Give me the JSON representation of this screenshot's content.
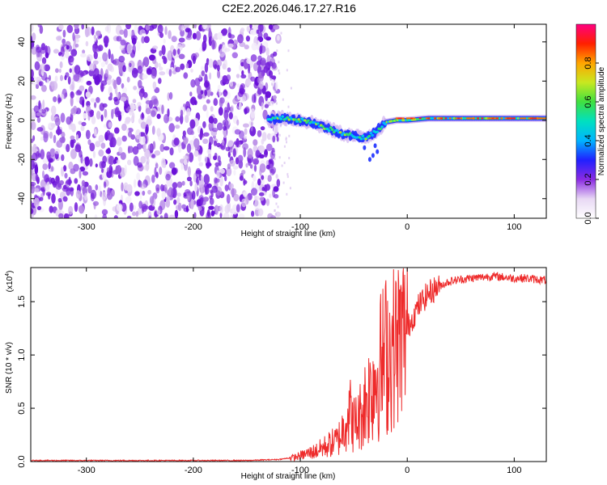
{
  "title": "C2E2.2026.046.17.27.R16",
  "chart_data": [
    {
      "type": "heatmap",
      "xlabel": "Height of straight line (km)",
      "ylabel": "Frequency (Hz)",
      "xlim": [
        -352,
        130
      ],
      "ylim": [
        -50,
        49
      ],
      "xticks": [
        -300,
        -200,
        -100,
        0,
        100
      ],
      "yticks": [
        -40,
        -20,
        0,
        20,
        40
      ],
      "colorbar": {
        "label": "Normalized spectral amplitude",
        "range": [
          0,
          1
        ],
        "ticks": [
          "0.0",
          "0.2",
          "0.4",
          "0.6",
          "0.8"
        ],
        "tick_values": [
          0,
          0.2,
          0.4,
          0.6,
          0.8
        ],
        "colors": [
          "#ffffff",
          "#e8d8f4",
          "#8a2be2",
          "#2020ff",
          "#00b4ff",
          "#00e0c0",
          "#40e040",
          "#c8e820",
          "#ffa500",
          "#ff2000",
          "#ff0080"
        ]
      },
      "noise_region": {
        "x_range": [
          -352,
          -128
        ],
        "description_color": "#8a2be2"
      },
      "signal_track": [
        {
          "x": -130,
          "y": 0
        },
        {
          "x": -120,
          "y": 1
        },
        {
          "x": -110,
          "y": 1
        },
        {
          "x": -100,
          "y": 0
        },
        {
          "x": -90,
          "y": -1
        },
        {
          "x": -80,
          "y": -3
        },
        {
          "x": -70,
          "y": -5
        },
        {
          "x": -60,
          "y": -7
        },
        {
          "x": -50,
          "y": -8
        },
        {
          "x": -40,
          "y": -9
        },
        {
          "x": -30,
          "y": -6
        },
        {
          "x": -20,
          "y": -1
        },
        {
          "x": -10,
          "y": 0
        },
        {
          "x": 0,
          "y": 0
        },
        {
          "x": 20,
          "y": 1
        },
        {
          "x": 40,
          "y": 1
        },
        {
          "x": 60,
          "y": 1
        },
        {
          "x": 80,
          "y": 1
        },
        {
          "x": 100,
          "y": 1
        },
        {
          "x": 130,
          "y": 1
        }
      ]
    },
    {
      "type": "line",
      "xlabel": "Height of straight line (km)",
      "ylabel": "SNR (10 * v/v)",
      "multiplier_label": "(x10",
      "multiplier_exp": "4",
      "xlim": [
        -352,
        130
      ],
      "ylim": [
        0,
        1.82
      ],
      "xticks": [
        -300,
        -200,
        -100,
        0,
        100
      ],
      "yticks": [
        "0.0",
        "0.5",
        "1.0",
        "1.5"
      ],
      "ytick_values": [
        0,
        0.5,
        1.0,
        1.5
      ],
      "series": [
        {
          "color": "#ee2b2b",
          "x": [
            -352,
            -300,
            -250,
            -200,
            -150,
            -120,
            -105,
            -95,
            -85,
            -75,
            -65,
            -60,
            -55,
            -50,
            -45,
            -40,
            -35,
            -30,
            -25,
            -20,
            -15,
            -10,
            -5,
            0,
            5,
            10,
            15,
            20,
            30,
            40,
            50,
            60,
            70,
            80,
            90,
            100,
            110,
            120,
            130
          ],
          "y": [
            0.01,
            0.01,
            0.01,
            0.01,
            0.01,
            0.02,
            0.04,
            0.07,
            0.1,
            0.15,
            0.2,
            0.3,
            0.5,
            0.35,
            0.4,
            0.55,
            0.65,
            0.8,
            0.9,
            1.0,
            1.05,
            1.1,
            1.2,
            1.25,
            1.35,
            1.45,
            1.52,
            1.58,
            1.65,
            1.69,
            1.71,
            1.72,
            1.73,
            1.74,
            1.73,
            1.72,
            1.72,
            1.71,
            1.7
          ]
        }
      ]
    }
  ]
}
